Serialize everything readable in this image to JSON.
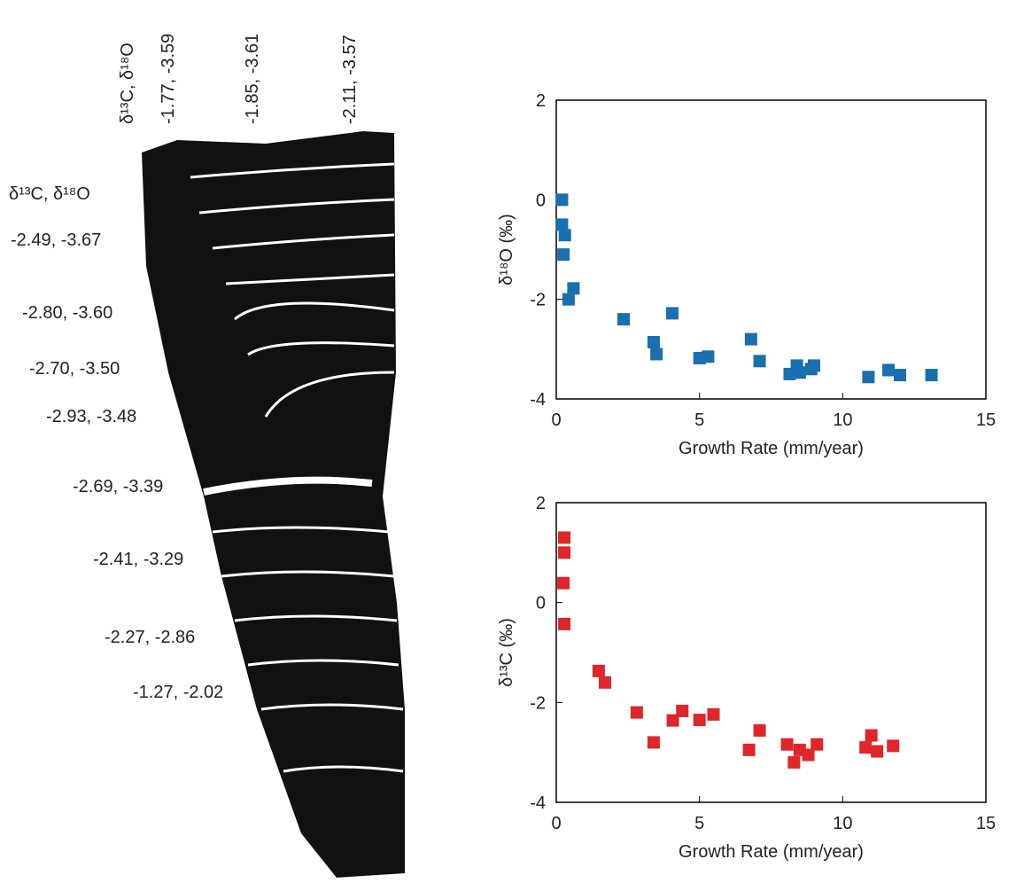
{
  "specimen": {
    "top_labels": [
      "δ¹³C, δ¹⁸O",
      "-1.77, -3.59",
      "-1.85, -3.61",
      "-2.11, -3.57"
    ],
    "side_header": "δ¹³C, δ¹⁸O",
    "side_labels": [
      "-2.49, -3.67",
      "-2.80, -3.60",
      "-2.70, -3.50",
      "-2.93, -3.48",
      "-2.69, -3.39",
      "-2.41, -3.29",
      "-2.27, -2.86",
      "-1.27, -2.02"
    ]
  },
  "chart_data": [
    {
      "type": "scatter",
      "x_label": "Growth Rate (mm/year)",
      "y_label": "δ¹⁸O (‰)",
      "color": "#1a6fae",
      "x": [
        0.2,
        0.2,
        0.3,
        0.25,
        0.43,
        0.6,
        2.35,
        3.4,
        4.05,
        3.5,
        5.0,
        5.3,
        6.8,
        7.1,
        8.15,
        8.4,
        8.5,
        8.9,
        9.0,
        10.9,
        11.6,
        12.0,
        13.1
      ],
      "values": [
        0.0,
        -0.5,
        -0.71,
        -1.1,
        -2.0,
        -1.78,
        -2.4,
        -2.86,
        -2.28,
        -3.1,
        -3.18,
        -3.15,
        -2.8,
        -3.24,
        -3.5,
        -3.33,
        -3.47,
        -3.4,
        -3.33,
        -3.56,
        -3.42,
        -3.52,
        -3.52
      ],
      "xlim": [
        0,
        15
      ],
      "ylim": [
        -4,
        2
      ],
      "xticks": [
        0,
        5,
        10,
        15
      ],
      "yticks": [
        -4,
        -2,
        0,
        2
      ]
    },
    {
      "type": "scatter",
      "x_label": "Growth Rate (mm/year)",
      "y_label": "δ¹³C (‰)",
      "color": "#e0262b",
      "x": [
        0.28,
        0.28,
        0.25,
        0.28,
        1.48,
        1.7,
        2.81,
        3.4,
        4.07,
        4.4,
        5.0,
        5.49,
        6.73,
        7.1,
        8.06,
        8.3,
        8.5,
        8.8,
        9.1,
        10.8,
        11.0,
        11.2,
        11.76
      ],
      "values": [
        1.3,
        1.0,
        0.39,
        -0.43,
        -1.37,
        -1.6,
        -2.2,
        -2.8,
        -2.36,
        -2.17,
        -2.35,
        -2.24,
        -2.95,
        -2.56,
        -2.84,
        -3.2,
        -2.95,
        -3.05,
        -2.84,
        -2.9,
        -2.66,
        -2.98,
        -2.87
      ],
      "xlim": [
        0,
        15
      ],
      "ylim": [
        -4,
        2
      ],
      "xticks": [
        0,
        5,
        10,
        15
      ],
      "yticks": [
        -4,
        -2,
        0,
        2
      ]
    }
  ]
}
